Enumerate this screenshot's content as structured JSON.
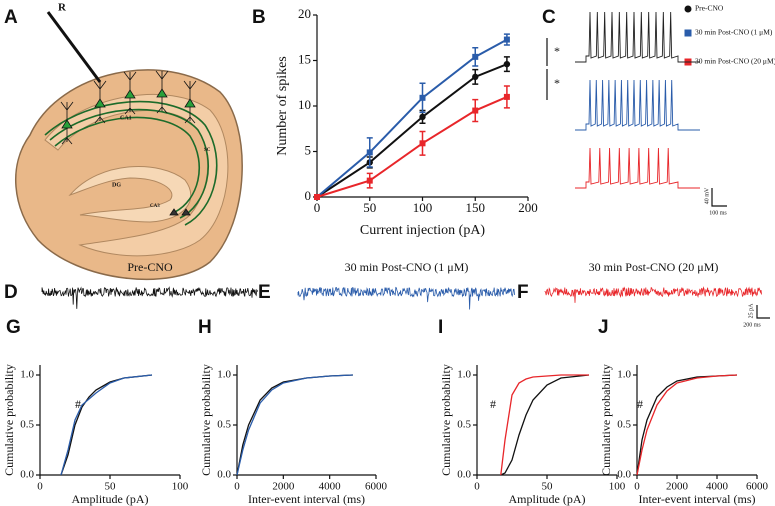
{
  "panel_labels": [
    "A",
    "B",
    "C",
    "D",
    "E",
    "F",
    "G",
    "H",
    "I",
    "J"
  ],
  "diagram": {
    "labels": [
      "R",
      "CA1",
      "DG",
      "CA3",
      "SC"
    ]
  },
  "traces": {
    "titles": [
      "Pre-CNO",
      "30 min Post-CNO (1 μM)",
      "30 min Post-CNO (20 μM)"
    ],
    "scale_c": [
      "40 mV",
      "100 ms"
    ],
    "scale_def": [
      "25 pA",
      "200 ms"
    ]
  },
  "chart_data": [
    {
      "type": "line",
      "x": [
        0,
        50,
        100,
        150,
        180
      ],
      "series": [
        {
          "name": "Pre-CNO",
          "color": "#111111",
          "marker": "circle",
          "values": [
            0,
            3.8,
            8.8,
            13.2,
            14.6
          ],
          "errors": [
            0,
            0.6,
            0.7,
            0.8,
            0.8
          ]
        },
        {
          "name": "30 min Post-CNO (1 μM)",
          "color": "#2a5caa",
          "marker": "square",
          "values": [
            0,
            4.9,
            10.9,
            15.4,
            17.3
          ],
          "errors": [
            0,
            1.6,
            1.6,
            1.0,
            0.6
          ]
        },
        {
          "name": "30 min Post-CNO (20 μM)",
          "color": "#e8262a",
          "marker": "square",
          "values": [
            0,
            1.8,
            5.9,
            9.5,
            11.0
          ],
          "errors": [
            0,
            0.8,
            1.3,
            1.2,
            1.2
          ]
        }
      ],
      "xlabel": "Current injection (pA)",
      "ylabel": "Number of spikes",
      "xlim": [
        0,
        200
      ],
      "xticks": [
        0,
        50,
        100,
        150,
        200
      ],
      "ylim": [
        0,
        20
      ],
      "yticks": [
        0,
        5,
        10,
        15,
        20
      ],
      "annotations": [
        "*",
        "*"
      ]
    },
    {
      "type": "line",
      "x": [
        15,
        20,
        25,
        30,
        35,
        40,
        50,
        60,
        80
      ],
      "series": [
        {
          "color": "#111111",
          "values": [
            0,
            0.2,
            0.5,
            0.68,
            0.78,
            0.85,
            0.93,
            0.97,
            1.0
          ]
        },
        {
          "color": "#2a5caa",
          "values": [
            0,
            0.25,
            0.55,
            0.7,
            0.76,
            0.82,
            0.92,
            0.97,
            1.0
          ]
        }
      ],
      "xlabel": "Amplitude (pA)",
      "ylabel": "Cumulative probability",
      "xlim": [
        0,
        100
      ],
      "xticks": [
        0,
        50,
        100
      ],
      "ylim": [
        0,
        1.1
      ],
      "yticks": [
        {
          "value": 0,
          "label": "0.0"
        },
        {
          "value": 0.5,
          "label": "0.5"
        },
        {
          "value": 1,
          "label": "1.0"
        }
      ],
      "annotations": [
        "#"
      ]
    },
    {
      "type": "line",
      "x": [
        0,
        250,
        500,
        1000,
        1500,
        2000,
        3000,
        4000,
        5000
      ],
      "series": [
        {
          "color": "#111111",
          "values": [
            0,
            0.3,
            0.5,
            0.75,
            0.87,
            0.93,
            0.97,
            0.99,
            1.0
          ]
        },
        {
          "color": "#2a5caa",
          "values": [
            0,
            0.25,
            0.45,
            0.72,
            0.85,
            0.92,
            0.97,
            0.99,
            1.0
          ]
        }
      ],
      "xlabel": "Inter-event interval (ms)",
      "ylabel": "Cumulative probability",
      "xlim": [
        0,
        6000
      ],
      "xticks": [
        0,
        2000,
        4000,
        6000
      ],
      "ylim": [
        0,
        1.1
      ],
      "yticks": [
        {
          "value": 0,
          "label": "0.0"
        },
        {
          "value": 0.5,
          "label": "0.5"
        },
        {
          "value": 1,
          "label": "1.0"
        }
      ]
    },
    {
      "type": "line",
      "x": [
        17,
        20,
        25,
        30,
        35,
        40,
        50,
        60,
        80
      ],
      "series": [
        {
          "color": "#111111",
          "values": [
            0,
            0.02,
            0.15,
            0.4,
            0.6,
            0.75,
            0.9,
            0.97,
            1.0
          ]
        },
        {
          "color": "#e8262a",
          "values": [
            0,
            0.35,
            0.8,
            0.92,
            0.96,
            0.98,
            0.99,
            1.0,
            1.0
          ]
        }
      ],
      "xlabel": "Amplitude (pA)",
      "ylabel": "Cumulative probability",
      "xlim": [
        0,
        100
      ],
      "xticks": [
        0,
        50,
        100
      ],
      "ylim": [
        0,
        1.1
      ],
      "yticks": [
        {
          "value": 0,
          "label": "0.0"
        },
        {
          "value": 0.5,
          "label": "0.5"
        },
        {
          "value": 1,
          "label": "1.0"
        }
      ],
      "annotations": [
        "#"
      ]
    },
    {
      "type": "line",
      "x": [
        0,
        250,
        500,
        1000,
        1500,
        2000,
        3000,
        4000,
        5000
      ],
      "series": [
        {
          "color": "#111111",
          "values": [
            0,
            0.35,
            0.55,
            0.78,
            0.88,
            0.94,
            0.98,
            0.99,
            1.0
          ]
        },
        {
          "color": "#e8262a",
          "values": [
            0,
            0.25,
            0.45,
            0.7,
            0.84,
            0.92,
            0.97,
            0.99,
            1.0
          ]
        }
      ],
      "xlabel": "Inter-event interval (ms)",
      "ylabel": "Cumulative probability",
      "xlim": [
        0,
        6000
      ],
      "xticks": [
        0,
        2000,
        4000,
        6000
      ],
      "ylim": [
        0,
        1.1
      ],
      "yticks": [
        {
          "value": 0,
          "label": "0.0"
        },
        {
          "value": 0.5,
          "label": "0.5"
        },
        {
          "value": 1,
          "label": "1.0"
        }
      ],
      "annotations": [
        "#"
      ]
    }
  ]
}
